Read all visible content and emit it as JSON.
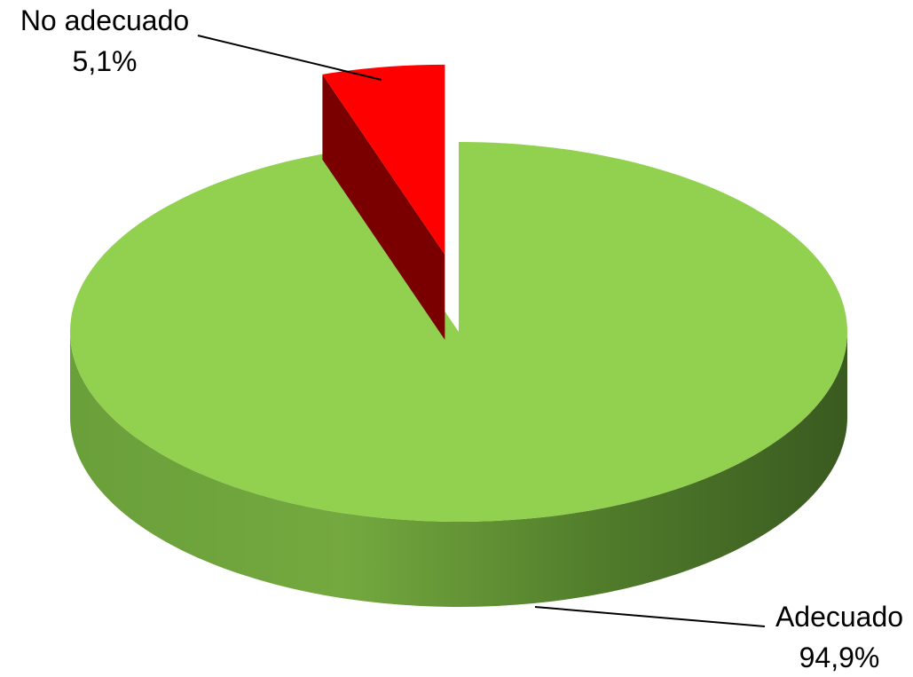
{
  "chart_data": {
    "type": "pie",
    "style": "3d-exploded",
    "slices": [
      {
        "label": "No adecuado",
        "value": 5.1,
        "value_label": "5,1%",
        "color": "#ff0000",
        "side_color": "#7a0000",
        "exploded": true
      },
      {
        "label": "Adecuado",
        "value": 94.9,
        "value_label": "94,9%",
        "color": "#92d050",
        "side_color": "#5b8a2e",
        "exploded": false
      }
    ],
    "legend": "none"
  }
}
